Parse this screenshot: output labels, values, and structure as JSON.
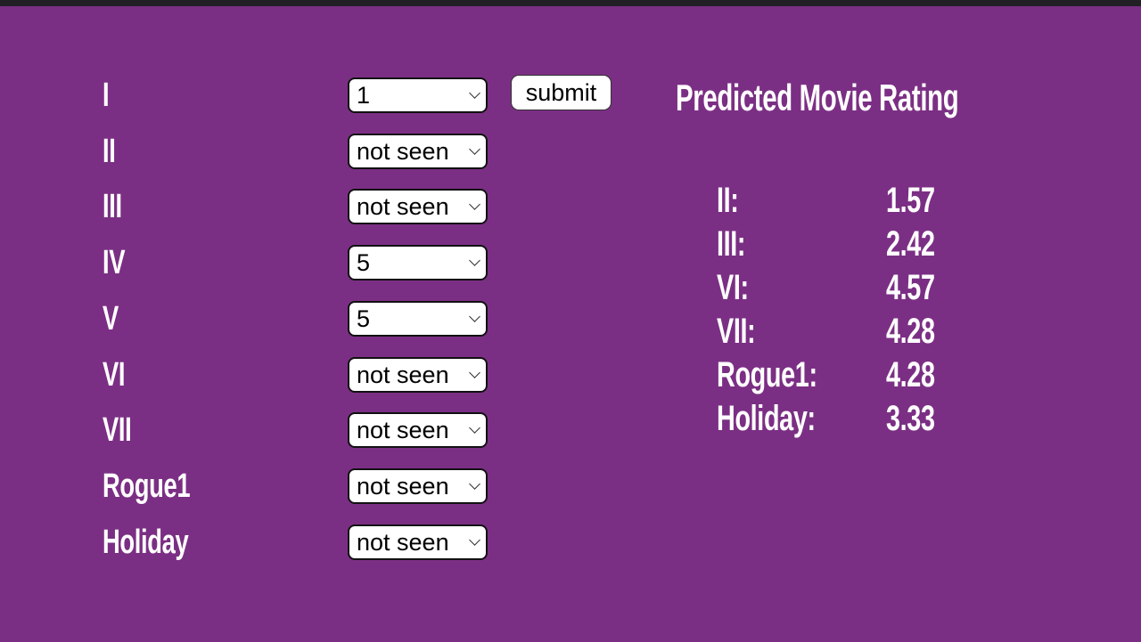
{
  "form": {
    "movies": [
      {
        "label": "I",
        "value": "1"
      },
      {
        "label": "II",
        "value": "not seen"
      },
      {
        "label": "III",
        "value": "not seen"
      },
      {
        "label": "IV",
        "value": "5"
      },
      {
        "label": "V",
        "value": "5"
      },
      {
        "label": "VI",
        "value": "not seen"
      },
      {
        "label": "VII",
        "value": "not seen"
      },
      {
        "label": "Rogue1",
        "value": "not seen"
      },
      {
        "label": "Holiday",
        "value": "not seen"
      }
    ],
    "submit_label": "submit"
  },
  "results": {
    "title": "Predicted Movie Rating",
    "items": [
      {
        "name": "II:",
        "value": "1.57"
      },
      {
        "name": "III:",
        "value": "2.42"
      },
      {
        "name": "VI:",
        "value": "4.57"
      },
      {
        "name": "VII:",
        "value": "4.28"
      },
      {
        "name": "Rogue1:",
        "value": "4.28"
      },
      {
        "name": "Holiday:",
        "value": "3.33"
      }
    ]
  }
}
